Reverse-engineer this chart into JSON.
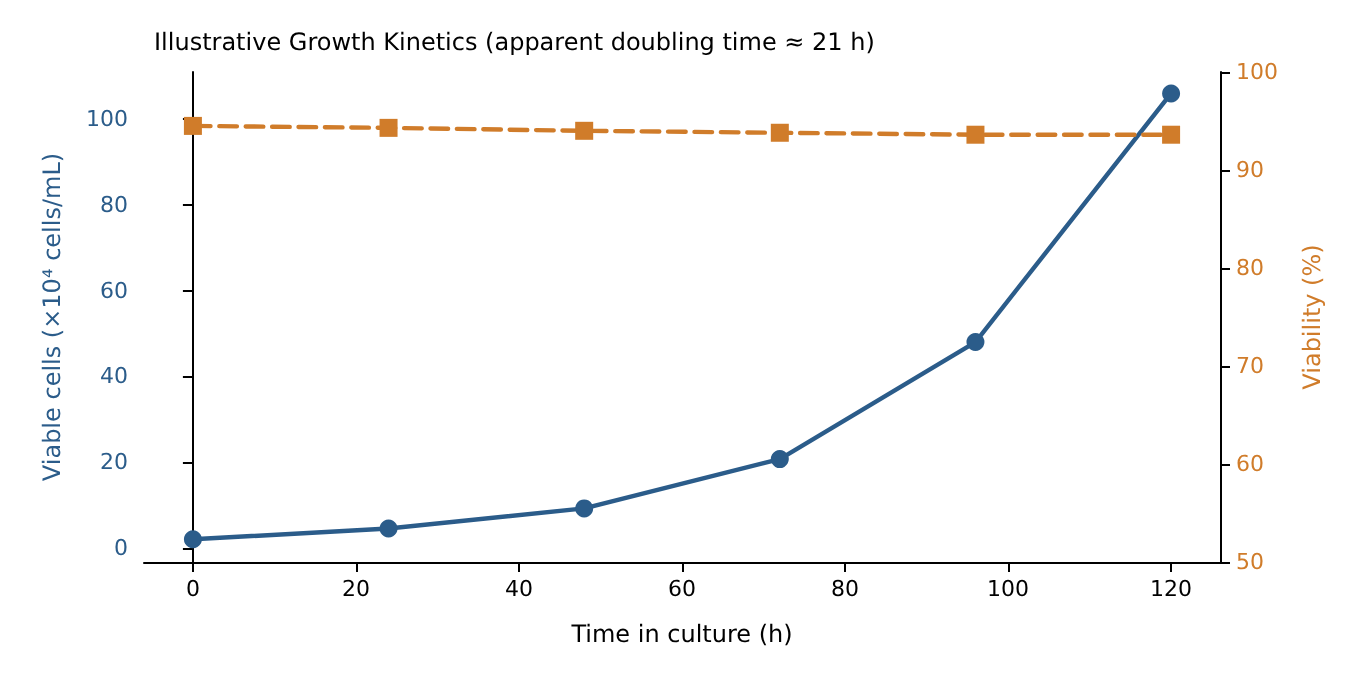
{
  "chart_data": {
    "type": "line",
    "title": "Illustrative Growth Kinetics (apparent doubling time ≈ 21 h)",
    "xlabel": "Time in culture (h)",
    "ylabel": "Viable cells (×10⁴ cells/mL)",
    "y2label": "Viability (%)",
    "x": [
      0,
      24,
      48,
      72,
      96,
      120
    ],
    "series": [
      {
        "color": "#2b5c8a",
        "values": [
          2,
          4.5,
          9.2,
          20.7,
          48,
          106
        ],
        "marker": "circle",
        "line_style": "solid"
      },
      {
        "color": "#d07c2a",
        "values": [
          94.5,
          94.3,
          94.0,
          93.8,
          93.6,
          93.6
        ],
        "axis": "y2",
        "marker": "square",
        "line_style": "dashed"
      }
    ],
    "xlim": [
      -6,
      126
    ],
    "xticks": [
      0,
      20,
      40,
      60,
      80,
      100,
      120
    ],
    "ylim": [
      -3.3,
      111
    ],
    "yticks": [
      0,
      20,
      40,
      60,
      80,
      100
    ],
    "y2lim": [
      50,
      100
    ],
    "y2ticks": [
      50,
      60,
      70,
      80,
      90,
      100
    ]
  }
}
